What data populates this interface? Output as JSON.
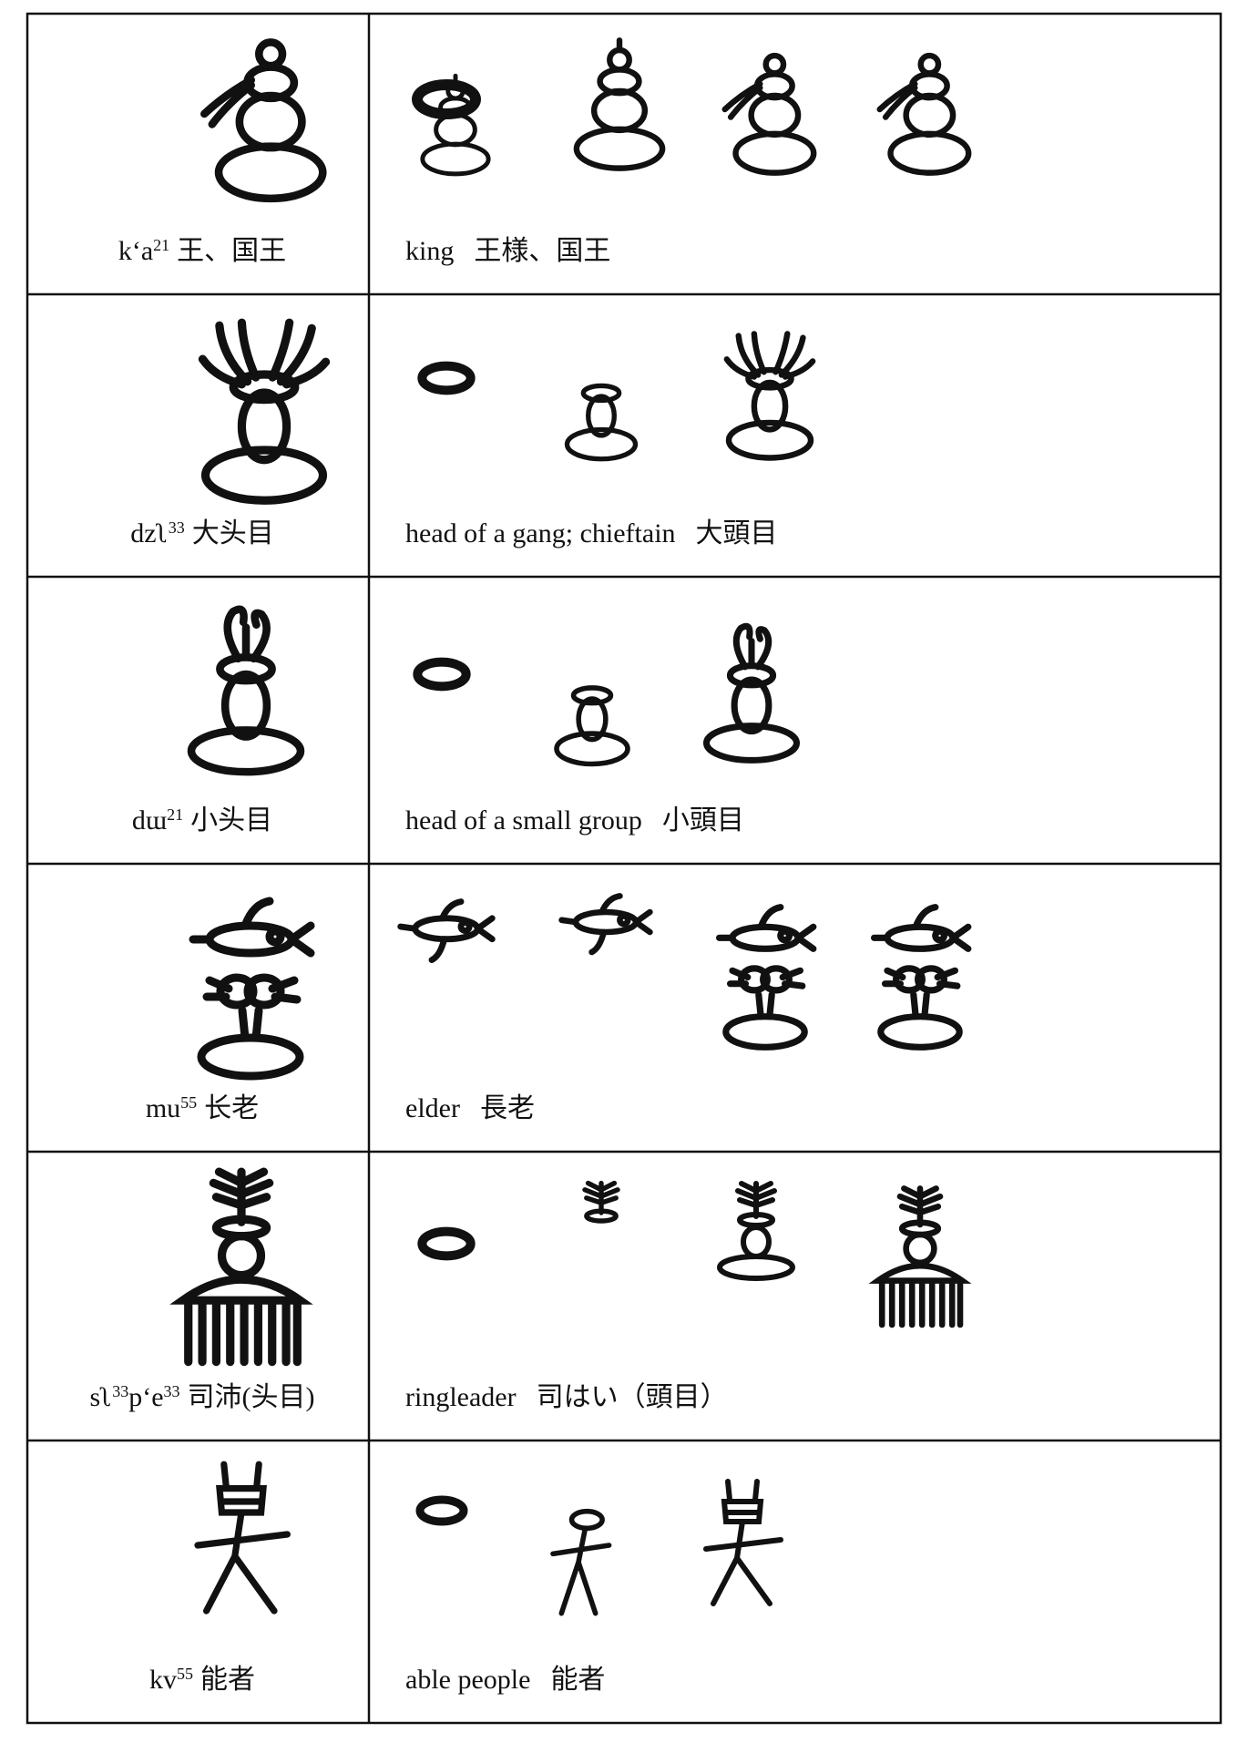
{
  "table": {
    "rows": [
      {
        "reading": [
          [
            "k‘a",
            "21"
          ]
        ],
        "gloss": "王、国王",
        "english": "king",
        "japanese": "王様、国王"
      },
      {
        "reading": [
          [
            "dzʅ",
            "33"
          ]
        ],
        "gloss": "大头目",
        "english": "head of a gang; chieftain",
        "japanese": "大頭目"
      },
      {
        "reading": [
          [
            "dɯ",
            "21"
          ]
        ],
        "gloss": "小头目",
        "english": "head of a small group",
        "japanese": "小頭目"
      },
      {
        "reading": [
          [
            "mu",
            "55"
          ]
        ],
        "gloss": "长老",
        "english": "elder",
        "japanese": "長老"
      },
      {
        "reading": [
          [
            "sʅ",
            "33"
          ],
          [
            "p‘e",
            "33"
          ]
        ],
        "gloss": "司沛(头目)",
        "english": "ringleader",
        "japanese": "司はい（頭目）"
      },
      {
        "reading": [
          [
            "kv",
            "55"
          ]
        ],
        "gloss": "能者",
        "english": "able people",
        "japanese": "能者"
      }
    ]
  }
}
